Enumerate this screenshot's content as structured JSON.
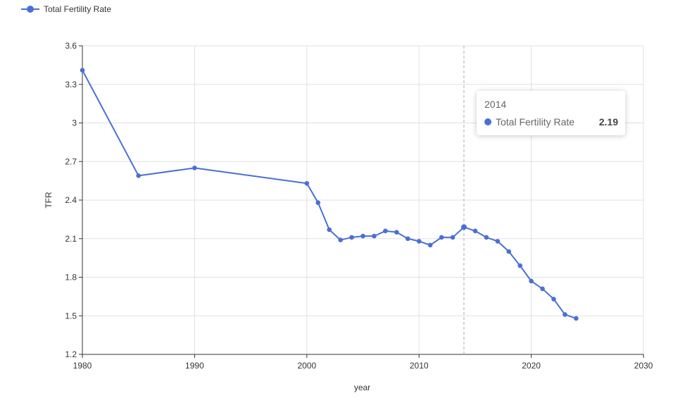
{
  "legend": {
    "series_label": "Total Fertility Rate"
  },
  "tooltip": {
    "title": "2014",
    "series_name": "Total Fertility Rate",
    "value": "2.19"
  },
  "colors": {
    "series": "#4a6fd4",
    "grid": "#e0e0e0",
    "axis": "#333333",
    "pointer": "#aaaaaa"
  },
  "chart_data": {
    "type": "line",
    "xlabel": "year",
    "ylabel": "TFR",
    "xlim": [
      1980,
      2030
    ],
    "ylim": [
      1.2,
      3.6
    ],
    "x_ticks": [
      1980,
      1990,
      2000,
      2010,
      2020,
      2030
    ],
    "y_ticks": [
      "1.2",
      "1.5",
      "1.8",
      "2.1",
      "2.4",
      "2.7",
      "3",
      "3.3",
      "3.6"
    ],
    "grid": true,
    "legend_position": "top-left",
    "highlight_x": 2014,
    "series": [
      {
        "name": "Total Fertility Rate",
        "points": [
          [
            1980,
            3.41
          ],
          [
            1985,
            2.59
          ],
          [
            1990,
            2.65
          ],
          [
            2000,
            2.53
          ],
          [
            2001,
            2.38
          ],
          [
            2002,
            2.17
          ],
          [
            2003,
            2.09
          ],
          [
            2004,
            2.11
          ],
          [
            2005,
            2.12
          ],
          [
            2006,
            2.12
          ],
          [
            2007,
            2.16
          ],
          [
            2008,
            2.15
          ],
          [
            2009,
            2.1
          ],
          [
            2010,
            2.08
          ],
          [
            2011,
            2.05
          ],
          [
            2012,
            2.11
          ],
          [
            2013,
            2.11
          ],
          [
            2014,
            2.19
          ],
          [
            2015,
            2.16
          ],
          [
            2016,
            2.11
          ],
          [
            2017,
            2.08
          ],
          [
            2018,
            2.0
          ],
          [
            2019,
            1.89
          ],
          [
            2020,
            1.77
          ],
          [
            2021,
            1.71
          ],
          [
            2022,
            1.63
          ],
          [
            2023,
            1.51
          ],
          [
            2024,
            1.48
          ]
        ]
      }
    ]
  }
}
